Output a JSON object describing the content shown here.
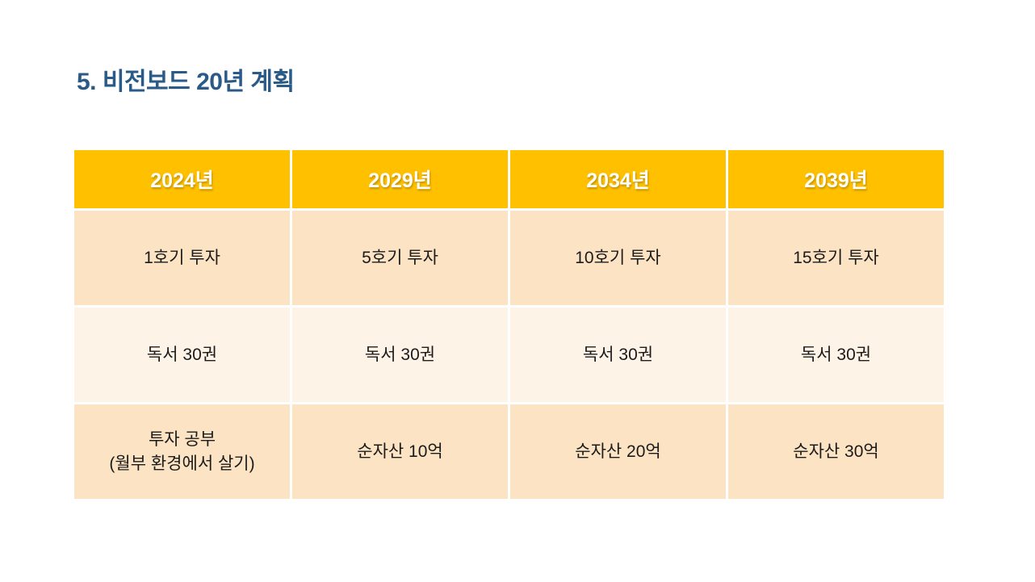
{
  "slide": {
    "title": "5. 비전보드 20년 계획"
  },
  "colors": {
    "background": "#ffffff",
    "title_text": "#2a5a87",
    "table_header_bg": "#ffc000",
    "table_header_text": "#ffffff",
    "row_peach_bg": "#fbe3c3",
    "row_cream_bg": "#fdf3e7",
    "cell_text": "#1b1b1b"
  },
  "table": {
    "columns": [
      "2024년",
      "2029년",
      "2034년",
      "2039년"
    ],
    "rows": [
      {
        "variant": "peach",
        "cells": [
          [
            "1호기 투자"
          ],
          [
            "5호기 투자"
          ],
          [
            "10호기 투자"
          ],
          [
            "15호기 투자"
          ]
        ]
      },
      {
        "variant": "cream",
        "cells": [
          [
            "독서 30권"
          ],
          [
            "독서 30권"
          ],
          [
            "독서 30권"
          ],
          [
            "독서 30권"
          ]
        ]
      },
      {
        "variant": "peach",
        "cells": [
          [
            "투자 공부",
            "(월부 환경에서 살기)"
          ],
          [
            "순자산 10억"
          ],
          [
            "순자산 20억"
          ],
          [
            "순자산 30억"
          ]
        ]
      }
    ]
  }
}
